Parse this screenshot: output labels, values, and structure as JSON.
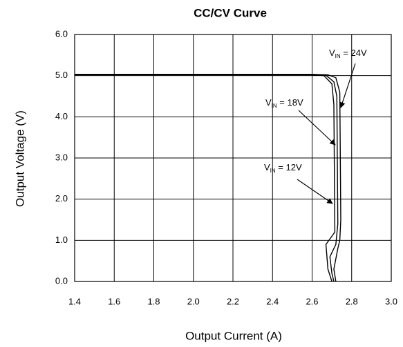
{
  "chart_data": {
    "type": "line",
    "title": "CC/CV Curve",
    "xlabel": "Output Current (A)",
    "ylabel": "Output Voltage (V)",
    "xlim": [
      1.4,
      3.0
    ],
    "xticks": [
      1.4,
      1.6,
      1.8,
      {
        "value": 2,
        "label": "2.0"
      },
      2.2,
      2.4,
      2.6,
      2.8,
      {
        "value": 3,
        "label": "3.0"
      }
    ],
    "ylim": [
      0,
      6
    ],
    "yticks": [
      {
        "value": 0,
        "label": "0.0"
      },
      {
        "value": 1,
        "label": "1.0"
      },
      {
        "value": 2,
        "label": "2.0"
      },
      {
        "value": 3,
        "label": "3.0"
      },
      {
        "value": 4,
        "label": "4.0"
      },
      {
        "value": 5,
        "label": "5.0"
      },
      {
        "value": 6,
        "label": "6.0"
      }
    ],
    "grid": true,
    "series": [
      {
        "color": "#000000",
        "x": [
          1.4,
          2.6,
          2.68,
          2.72,
          2.74,
          2.745,
          2.74,
          2.73,
          2.71,
          2.72
        ],
        "values": [
          5.03,
          5.03,
          5.02,
          4.95,
          4.6,
          1.5,
          1.0,
          0.8,
          0.3,
          0.0
        ]
      },
      {
        "color": "#000000",
        "x": [
          1.4,
          2.6,
          2.67,
          2.71,
          2.725,
          2.73,
          2.72,
          2.69,
          2.7,
          2.71
        ],
        "values": [
          5.03,
          5.03,
          5.01,
          4.85,
          4.5,
          1.4,
          0.9,
          0.6,
          0.2,
          0.0
        ]
      },
      {
        "color": "#000000",
        "x": [
          1.4,
          2.6,
          2.66,
          2.7,
          2.71,
          2.715,
          2.7,
          2.67,
          2.68,
          2.7
        ],
        "values": [
          5.02,
          5.02,
          5.0,
          4.8,
          4.3,
          1.2,
          1.1,
          0.9,
          0.3,
          0.0
        ]
      }
    ],
    "annotations": [
      {
        "text": "V",
        "subscript": "IN",
        "suffix": " = 24V"
      },
      {
        "text": "V",
        "subscript": "IN",
        "suffix": " = 18V"
      },
      {
        "text": "V",
        "subscript": "IN",
        "suffix": " = 12V"
      }
    ]
  }
}
